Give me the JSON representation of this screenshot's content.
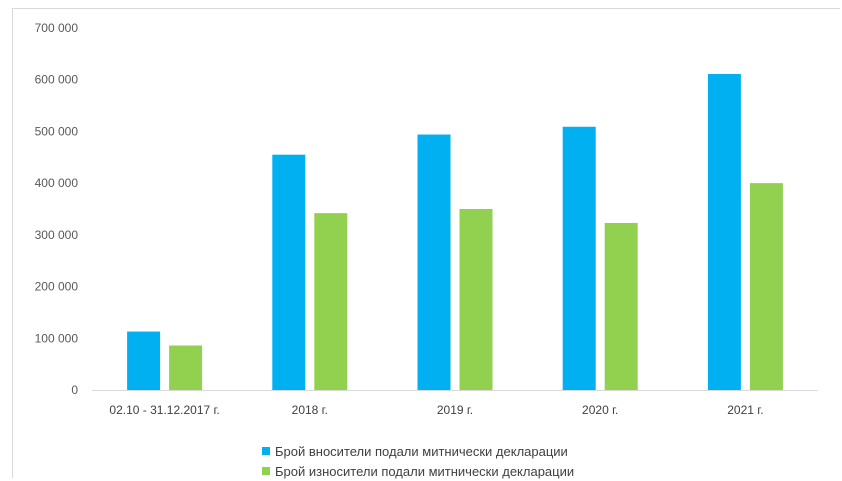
{
  "chart_data": {
    "type": "bar",
    "categories": [
      "02.10 - 31.12.2017 г.",
      "2018 г.",
      "2019 г.",
      "2020 г.",
      "2021 г."
    ],
    "series": [
      {
        "name": "Брой вносители подали митнически декларации",
        "color": "#00b0f0",
        "values": [
          113000,
          455000,
          494000,
          509000,
          611000
        ]
      },
      {
        "name": "Брой износители подали митнически декларации",
        "color": "#92d050",
        "values": [
          86000,
          342000,
          350000,
          323000,
          400000
        ]
      }
    ],
    "yticks": [
      "0",
      "100 000",
      "200 000",
      "300 000",
      "400 000",
      "500 000",
      "600 000",
      "700 000"
    ],
    "ylim": [
      0,
      700000
    ],
    "grid": false,
    "legend_position": "bottom"
  }
}
